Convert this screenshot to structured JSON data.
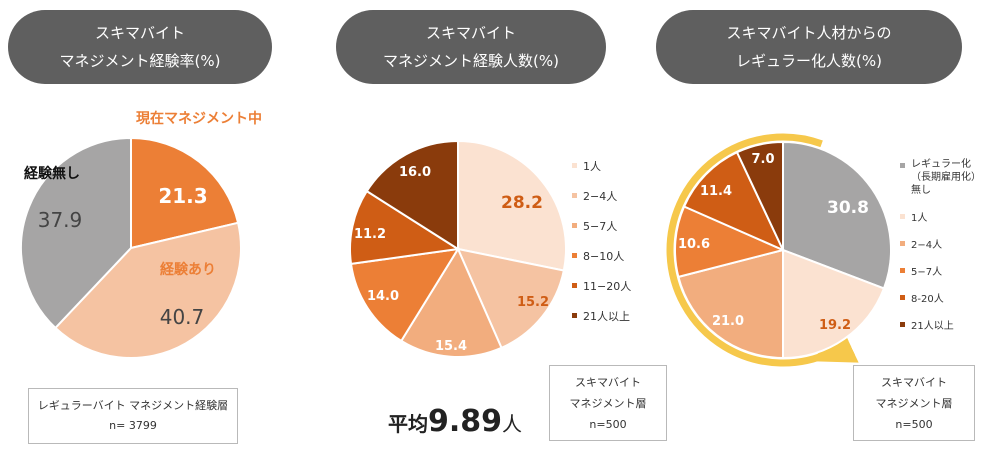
{
  "colors": {
    "header_bg": "#5f5f5f",
    "c1": "#fbe2d1",
    "c2": "#f5c3a2",
    "c3": "#f2ad7e",
    "c4": "#ec7f36",
    "c5": "#cf5d15",
    "c6": "#8a3b0c",
    "grey": "#a6a5a5",
    "arrow": "#f6c84b"
  },
  "panels": [
    {
      "title_line1": "スキマバイト",
      "title_line2": "マネジメント経験率(%)",
      "annotation_current": "現在マネジメント中",
      "label_none": "経験無し",
      "label_experienced": "経験あり",
      "note_line1": "レギュラーバイト マネジメント経験層",
      "note_line2": "n= 3799"
    },
    {
      "title_line1": "スキマバイト",
      "title_line2": "マネジメント経験人数(%)",
      "legend": [
        "1人",
        "2−4人",
        "5−7人",
        "8−10人",
        "11−20人",
        "21人以上"
      ],
      "average_prefix": "平均",
      "average_value": "9.89",
      "average_unit": "人",
      "note_line1": "スキマバイト",
      "note_line2": "マネジメント層",
      "note_line3": "n=500"
    },
    {
      "title_line1": "スキマバイト人材からの",
      "title_line2": "レギュラー化人数(%)",
      "legend": [
        "レギュラー化（長期雇用化）無し",
        "1人",
        "2−4人",
        "5−7人",
        "8-20人",
        "21人以上"
      ],
      "note_line1": "スキマバイト",
      "note_line2": "マネジメント層",
      "note_line3": "n=500"
    }
  ],
  "chart_data": [
    {
      "type": "pie",
      "title": "スキマバイト マネジメント経験率(%)",
      "categories": [
        "現在マネジメント中",
        "経験あり",
        "経験無し"
      ],
      "values": [
        21.3,
        40.7,
        37.9
      ],
      "value_labels": [
        "21.3",
        "40.7",
        "37.9"
      ]
    },
    {
      "type": "pie",
      "title": "スキマバイト マネジメント経験人数(%)",
      "categories": [
        "1人",
        "2−4人",
        "5−7人",
        "8−10人",
        "11−20人",
        "21人以上"
      ],
      "values": [
        28.2,
        15.2,
        15.4,
        14.0,
        11.2,
        16.0
      ],
      "value_labels": [
        "28.2",
        "15.2",
        "15.4",
        "14.0",
        "11.2",
        "16.0"
      ],
      "legend_position": "right"
    },
    {
      "type": "pie",
      "title": "スキマバイト人材からのレギュラー化人数(%)",
      "categories": [
        "レギュラー化（長期雇用化）無し",
        "1人",
        "2−4人",
        "5−7人",
        "8-20人",
        "21人以上"
      ],
      "values": [
        30.8,
        19.2,
        21.0,
        10.6,
        11.4,
        7.0
      ],
      "value_labels": [
        "30.8",
        "19.2",
        "21.0",
        "10.6",
        "11.4",
        "7.0"
      ],
      "legend_position": "right"
    }
  ]
}
